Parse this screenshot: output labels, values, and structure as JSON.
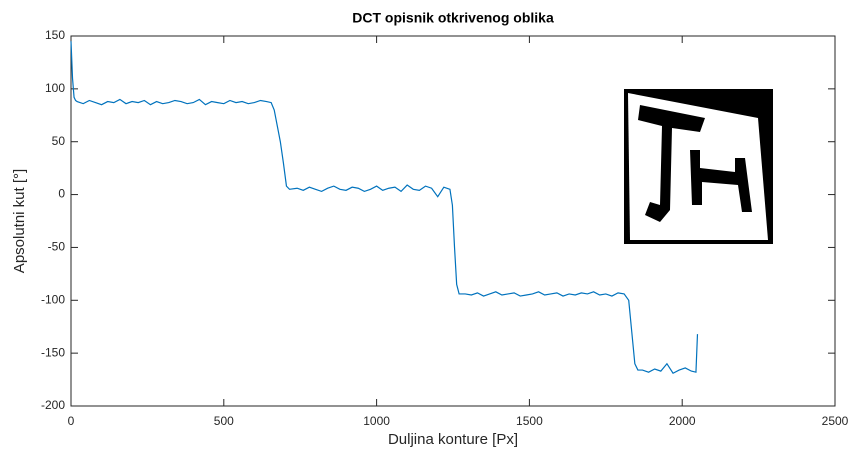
{
  "chart_data": {
    "type": "line",
    "title": "DCT opisnik otkrivenog oblika",
    "xlabel": "Duljina konture [Px]",
    "ylabel": "Apsolutni kut [°]",
    "xlim": [
      0,
      2500
    ],
    "xticks": [
      0,
      500,
      1000,
      1500,
      2000,
      2500
    ],
    "ylim": [
      -200,
      150
    ],
    "yticks": [
      -200,
      -150,
      -100,
      -50,
      0,
      50,
      100,
      150
    ],
    "grid": false,
    "series": [
      {
        "color": "#0072bd",
        "x": [
          0,
          5,
          10,
          15,
          20,
          40,
          60,
          80,
          100,
          120,
          140,
          160,
          180,
          200,
          220,
          240,
          260,
          280,
          300,
          320,
          340,
          360,
          380,
          400,
          420,
          440,
          460,
          480,
          500,
          520,
          540,
          560,
          580,
          600,
          620,
          640,
          655,
          665,
          675,
          685,
          695,
          705,
          715,
          740,
          760,
          780,
          800,
          820,
          840,
          860,
          880,
          900,
          920,
          940,
          960,
          980,
          1000,
          1020,
          1040,
          1060,
          1080,
          1100,
          1120,
          1140,
          1160,
          1180,
          1200,
          1220,
          1240,
          1248,
          1255,
          1262,
          1270,
          1290,
          1310,
          1330,
          1350,
          1370,
          1390,
          1410,
          1430,
          1450,
          1470,
          1490,
          1510,
          1530,
          1550,
          1570,
          1590,
          1610,
          1630,
          1650,
          1670,
          1690,
          1710,
          1730,
          1750,
          1770,
          1790,
          1810,
          1825,
          1835,
          1845,
          1855,
          1870,
          1890,
          1910,
          1930,
          1950,
          1970,
          1990,
          2010,
          2030,
          2045,
          2050
        ],
        "values": [
          145,
          110,
          92,
          89,
          88,
          86,
          89,
          87,
          85,
          88,
          87,
          90,
          86,
          88,
          87,
          89,
          85,
          88,
          86,
          87,
          89,
          88,
          86,
          87,
          90,
          85,
          88,
          87,
          86,
          89,
          87,
          88,
          86,
          87,
          89,
          88,
          87,
          80,
          65,
          50,
          30,
          8,
          5,
          6,
          4,
          7,
          5,
          3,
          6,
          8,
          5,
          4,
          7,
          6,
          3,
          5,
          8,
          4,
          6,
          7,
          3,
          9,
          5,
          4,
          8,
          6,
          -2,
          7,
          5,
          -10,
          -50,
          -85,
          -94,
          -94,
          -95,
          -93,
          -96,
          -94,
          -92,
          -95,
          -94,
          -93,
          -96,
          -95,
          -94,
          -92,
          -95,
          -94,
          -93,
          -96,
          -94,
          -95,
          -93,
          -94,
          -92,
          -95,
          -94,
          -96,
          -93,
          -94,
          -100,
          -130,
          -160,
          -166,
          -166,
          -168,
          -165,
          -167,
          -160,
          -169,
          -166,
          -164,
          -167,
          -168,
          -132
        ]
      }
    ]
  }
}
